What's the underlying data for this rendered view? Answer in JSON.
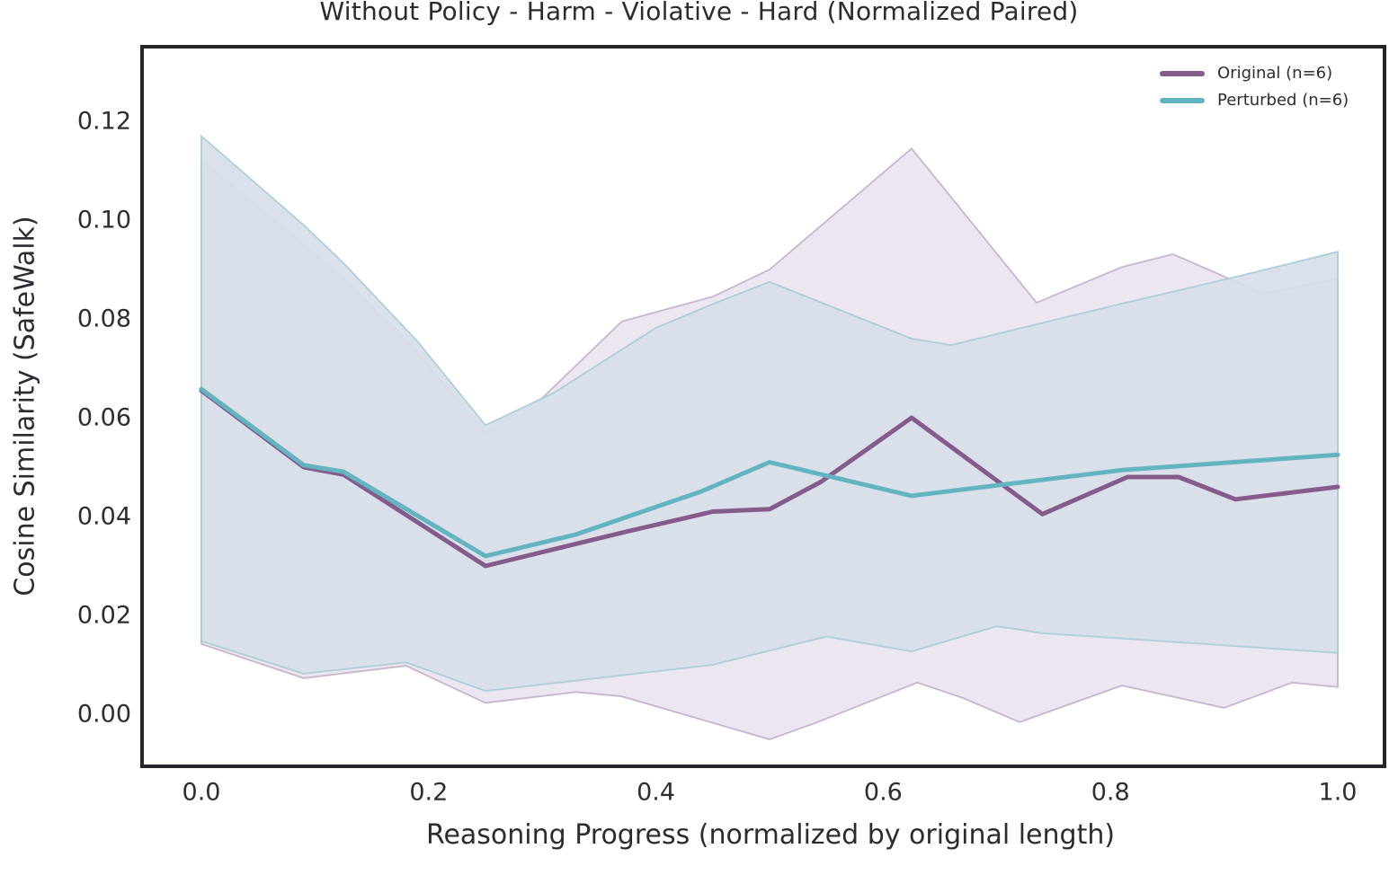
{
  "figure": {
    "title": "Without Policy - Harm - Violative - Hard (Normalized Paired)",
    "x_axis": {
      "label": "Reasoning Progress (normalized by original length)",
      "tick_labels": [
        "0.0",
        "0.2",
        "0.4",
        "0.6",
        "0.8",
        "1.0"
      ]
    },
    "y_axis": {
      "label": "Cosine Similarity (SafeWalk)",
      "tick_labels": [
        "0.00",
        "0.02",
        "0.04",
        "0.06",
        "0.08",
        "0.10",
        "0.12"
      ]
    },
    "legend": {
      "items": [
        {
          "label": "Original (n=6)",
          "color": "#855b8c"
        },
        {
          "label": "Perturbed (n=6)",
          "color": "#62b4c1"
        }
      ]
    }
  },
  "chart_data": {
    "type": "line",
    "title": "Without Policy - Harm - Violative - Hard (Normalized Paired)",
    "xlabel": "Reasoning Progress (normalized by original length)",
    "ylabel": "Cosine Similarity (SafeWalk)",
    "xlim": [
      -0.052,
      1.041
    ],
    "ylim": [
      -0.0105,
      0.135
    ],
    "x_ticks": [
      0.0,
      0.2,
      0.4,
      0.6,
      0.8,
      1.0
    ],
    "y_ticks": [
      0.0,
      0.02,
      0.04,
      0.06,
      0.08,
      0.1,
      0.12
    ],
    "grid": false,
    "legend_position": "upper right",
    "frame_color": "#24262b",
    "series": [
      {
        "name": "Original (n=6)",
        "color": "#855b8c",
        "line_width": 5,
        "x": [
          0.0,
          0.09,
          0.125,
          0.25,
          0.33,
          0.375,
          0.45,
          0.5,
          0.545,
          0.625,
          0.74,
          0.815,
          0.86,
          0.91,
          1.0
        ],
        "y": [
          0.0655,
          0.05,
          0.0485,
          0.03,
          0.0345,
          0.037,
          0.041,
          0.0415,
          0.047,
          0.06,
          0.0405,
          0.048,
          0.048,
          0.0435,
          0.046
        ],
        "band": {
          "fill": "#ece6f0",
          "fill_opacity": 1.0,
          "edge": "#c2afc9",
          "upper_x": [
            0.0,
            0.09,
            0.125,
            0.19,
            0.25,
            0.3,
            0.37,
            0.45,
            0.5,
            0.625,
            0.735,
            0.81,
            0.855,
            0.935,
            1.0
          ],
          "upper_y": [
            0.112,
            0.095,
            0.088,
            0.073,
            0.057,
            0.064,
            0.0795,
            0.0845,
            0.09,
            0.1145,
            0.0833,
            0.0905,
            0.0931,
            0.0851,
            0.0882
          ],
          "lower_x": [
            0.0,
            0.09,
            0.18,
            0.25,
            0.33,
            0.37,
            0.5,
            0.54,
            0.63,
            0.67,
            0.72,
            0.81,
            0.9,
            0.96,
            1.0
          ],
          "lower_y": [
            0.0142,
            0.0073,
            0.0098,
            0.0023,
            0.0045,
            0.0036,
            -0.0051,
            -0.0018,
            0.0064,
            0.0033,
            -0.0016,
            0.0058,
            0.0013,
            0.0064,
            0.0055
          ]
        }
      },
      {
        "name": "Perturbed (n=6)",
        "color": "#62b4c1",
        "line_width": 5,
        "x": [
          0.0,
          0.09,
          0.125,
          0.25,
          0.33,
          0.44,
          0.5,
          0.625,
          0.81,
          1.0
        ],
        "y": [
          0.0658,
          0.0504,
          0.0491,
          0.032,
          0.0364,
          0.0451,
          0.051,
          0.0442,
          0.0494,
          0.0525
        ],
        "band": {
          "fill": "#d8dfe9",
          "fill_opacity": 0.93,
          "edge": "#a6ccd5",
          "upper_x": [
            0.0,
            0.09,
            0.125,
            0.19,
            0.25,
            0.31,
            0.4,
            0.45,
            0.5,
            0.625,
            0.66,
            0.81,
            0.855,
            0.91,
            1.0
          ],
          "upper_y": [
            0.117,
            0.099,
            0.0913,
            0.0755,
            0.0585,
            0.065,
            0.0782,
            0.083,
            0.0875,
            0.076,
            0.0747,
            0.0831,
            0.0855,
            0.0885,
            0.0936
          ],
          "lower_x": [
            0.0,
            0.09,
            0.18,
            0.25,
            0.33,
            0.45,
            0.55,
            0.625,
            0.7,
            0.74,
            1.0
          ],
          "lower_y": [
            0.0148,
            0.0082,
            0.0105,
            0.0047,
            0.0068,
            0.01,
            0.0157,
            0.0127,
            0.0178,
            0.0164,
            0.0124
          ]
        }
      }
    ]
  }
}
